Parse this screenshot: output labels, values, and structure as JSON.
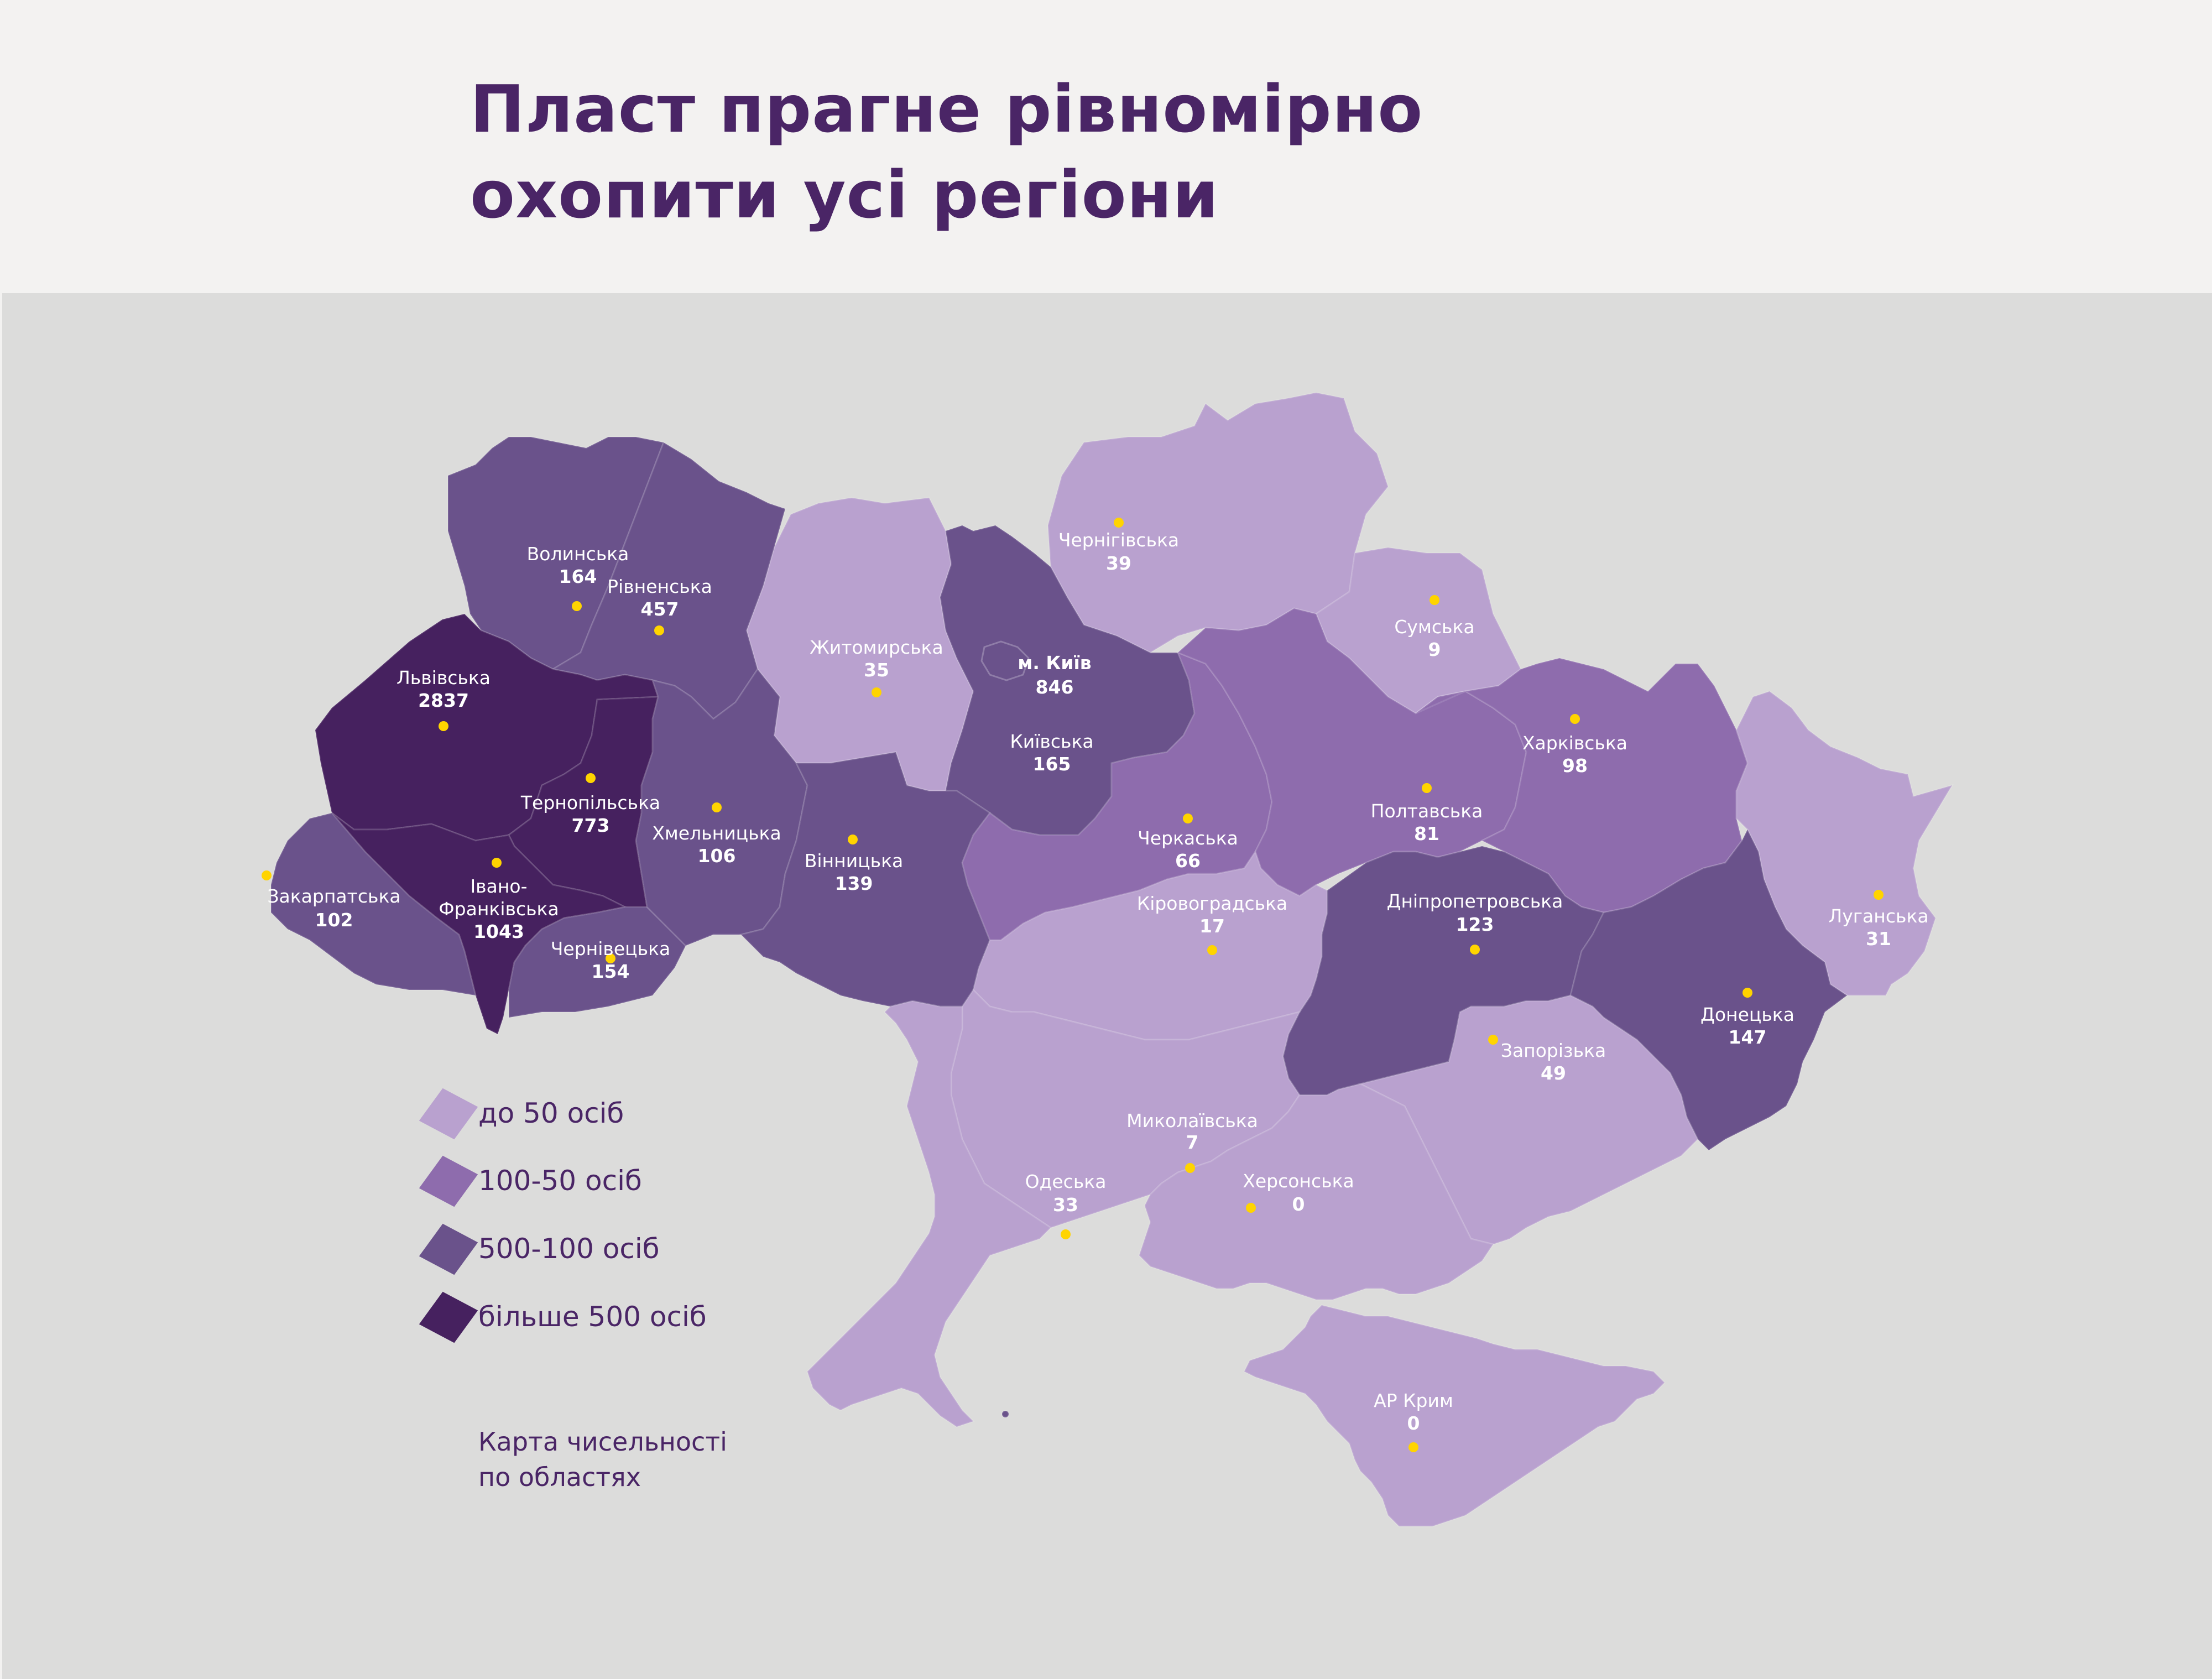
{
  "title": {
    "line1": "Пласт прагне рівномірно",
    "line2": "охопити усі регіони"
  },
  "caption": {
    "line1": "Карта чисельності",
    "line2": "по областях"
  },
  "colors": {
    "header_bg": "#f3f2f1",
    "panel_bg": "#dcdcdb",
    "title": "#4a2566",
    "marker": "#ffd400",
    "tier_1": "#b9a1cf",
    "tier_2": "#8e6cad",
    "tier_3": "#6a528b",
    "tier_4": "#46215f"
  },
  "legend": [
    {
      "label": "до 50 осіб",
      "color": "#b9a1cf"
    },
    {
      "label": "100-50 осіб",
      "color": "#8e6cad"
    },
    {
      "label": "500-100 осіб",
      "color": "#6a528b"
    },
    {
      "label": "більше 500 осіб",
      "color": "#46215f"
    }
  ],
  "regions": {
    "volyn": {
      "name": "Волинська",
      "value": "164",
      "tier": 3
    },
    "rivne": {
      "name": "Рівненська",
      "value": "457",
      "tier": 3
    },
    "lviv": {
      "name": "Львівська",
      "value": "2837",
      "tier": 4
    },
    "ternopil": {
      "name": "Тернопільська",
      "value": "773",
      "tier": 4
    },
    "ivano": {
      "name_line1": "Івано-",
      "name_line2": "Франківська",
      "value": "1043",
      "tier": 4
    },
    "zakarpattia": {
      "name": "Закарпатська",
      "value": "102",
      "tier": 3
    },
    "chernivtsi": {
      "name": "Чернівецька",
      "value": "154",
      "tier": 3
    },
    "khmelnytskyi": {
      "name": "Хмельницька",
      "value": "106",
      "tier": 3
    },
    "vinnytsia": {
      "name": "Вінницька",
      "value": "139",
      "tier": 3
    },
    "zhytomyr": {
      "name": "Житомирська",
      "value": "35",
      "tier": 1
    },
    "kyiv_city": {
      "name": "м. Київ",
      "value": "846",
      "tier": 4
    },
    "kyiv_oblast": {
      "name": "Київська",
      "value": "165",
      "tier": 3
    },
    "chernihiv": {
      "name": "Чернігівська",
      "value": "39",
      "tier": 1
    },
    "sumy": {
      "name": "Сумська",
      "value": "9",
      "tier": 1
    },
    "kharkiv": {
      "name": "Харківська",
      "value": "98",
      "tier": 2
    },
    "poltava": {
      "name": "Полтавська",
      "value": "81",
      "tier": 2
    },
    "cherkasy": {
      "name": "Черкаська",
      "value": "66",
      "tier": 2
    },
    "kirovohrad": {
      "name": "Кіровоградська",
      "value": "17",
      "tier": 1
    },
    "dnipro": {
      "name": "Дніпропетровська",
      "value": "123",
      "tier": 3
    },
    "luhansk": {
      "name": "Луганська",
      "value": "31",
      "tier": 1
    },
    "donetsk": {
      "name": "Донецька",
      "value": "147",
      "tier": 3
    },
    "zaporizhzhia": {
      "name": "Запорізька",
      "value": "49",
      "tier": 1
    },
    "mykolaiv": {
      "name": "Миколаївська",
      "value": "7",
      "tier": 1
    },
    "odesa": {
      "name": "Одеська",
      "value": "33",
      "tier": 1
    },
    "kherson": {
      "name": "Херсонська",
      "value": "0",
      "tier": 1
    },
    "crimea": {
      "name": "АР Крим",
      "value": "0",
      "tier": 1
    }
  }
}
